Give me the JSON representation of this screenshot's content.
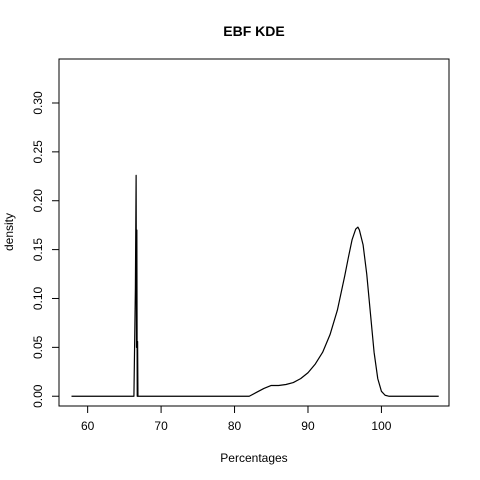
{
  "chart_data": {
    "type": "line",
    "title": "EBF  KDE",
    "xlabel": "Percentages",
    "ylabel": "density",
    "xlim": [
      56.1,
      109.2
    ],
    "ylim": [
      -0.01,
      0.345
    ],
    "xticks": [
      60,
      70,
      80,
      90,
      100
    ],
    "yticks": [
      0.0,
      0.05,
      0.1,
      0.15,
      0.2,
      0.25,
      0.3
    ],
    "ytick_labels": [
      "0.00",
      "0.05",
      "0.10",
      "0.15",
      "0.20",
      "0.25",
      "0.30"
    ],
    "grid": false,
    "legend": "none",
    "line_color": "#000000",
    "series": [
      {
        "x": [
          57.8,
          66.3,
          66.5,
          66.6,
          66.65,
          66.7,
          66.75,
          66.8,
          66.85,
          66.9,
          66.95,
          67.0,
          67.05,
          67.2,
          70.0,
          75.0,
          80.0,
          82.0,
          83.0,
          84.0,
          85.0,
          86.0,
          87.0,
          88.0,
          89.0,
          90.0,
          91.0,
          92.0,
          93.0,
          94.0,
          95.0,
          95.5,
          96.0,
          96.5,
          96.8,
          97.0,
          97.5,
          98.0,
          98.5,
          99.0,
          99.5,
          100.0,
          100.5,
          101.0,
          102.0,
          105.0,
          107.8
        ],
        "y": [
          0.0,
          0.0,
          0.11,
          0.226,
          0.05,
          0.17,
          0.0,
          0.056,
          0.0,
          0.0,
          0.0,
          0.0,
          0.0,
          0.0,
          0.0,
          0.0,
          0.0,
          0.0,
          0.004,
          0.008,
          0.011,
          0.011,
          0.012,
          0.014,
          0.018,
          0.024,
          0.033,
          0.045,
          0.063,
          0.088,
          0.123,
          0.142,
          0.16,
          0.171,
          0.173,
          0.17,
          0.155,
          0.125,
          0.085,
          0.045,
          0.018,
          0.005,
          0.001,
          0.0,
          0.0,
          0.0,
          0.0
        ]
      }
    ]
  }
}
